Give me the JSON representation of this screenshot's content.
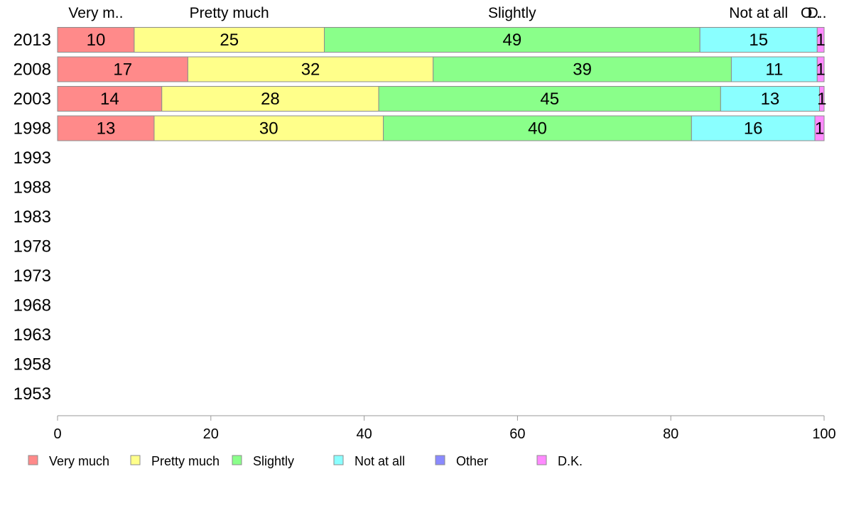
{
  "chart_data": {
    "type": "bar",
    "orientation": "horizontal",
    "stacked": true,
    "categories": [
      "2013",
      "2008",
      "2003",
      "1998",
      "1993",
      "1988",
      "1983",
      "1978",
      "1973",
      "1968",
      "1963",
      "1958",
      "1953"
    ],
    "series": [
      {
        "name": "Very much",
        "color": "#FF8A8A",
        "values": [
          10,
          17,
          13.6,
          12.6,
          null,
          null,
          null,
          null,
          null,
          null,
          null,
          null,
          null
        ],
        "labels": [
          "10",
          "17",
          "14",
          "13",
          "",
          "",
          "",
          "",
          "",
          "",
          "",
          "",
          ""
        ]
      },
      {
        "name": "Pretty much",
        "color": "#FFFF8A",
        "values": [
          24.8,
          32,
          28.3,
          29.9,
          null,
          null,
          null,
          null,
          null,
          null,
          null,
          null,
          null
        ],
        "labels": [
          "25",
          "32",
          "28",
          "30",
          "",
          "",
          "",
          "",
          "",
          "",
          "",
          "",
          ""
        ]
      },
      {
        "name": "Slightly",
        "color": "#8AFF8A",
        "values": [
          49,
          38.9,
          44.6,
          40.2,
          null,
          null,
          null,
          null,
          null,
          null,
          null,
          null,
          null
        ],
        "labels": [
          "49",
          "39",
          "45",
          "40",
          "",
          "",
          "",
          "",
          "",
          "",
          "",
          "",
          ""
        ]
      },
      {
        "name": "Not at all",
        "color": "#8AFFFF",
        "values": [
          15.3,
          11.2,
          12.9,
          16.1,
          null,
          null,
          null,
          null,
          null,
          null,
          null,
          null,
          null
        ],
        "labels": [
          "15",
          "11",
          "13",
          "16",
          "",
          "",
          "",
          "",
          "",
          "",
          "",
          "",
          ""
        ]
      },
      {
        "name": "Other",
        "color": "#8A8AFF",
        "values": [
          0,
          0,
          0,
          0,
          null,
          null,
          null,
          null,
          null,
          null,
          null,
          null,
          null
        ],
        "labels": [
          "",
          "",
          "",
          "",
          "",
          "",
          "",
          "",
          "",
          "",
          "",
          "",
          ""
        ]
      },
      {
        "name": "D.K.",
        "color": "#FF8AFF",
        "values": [
          0.9,
          0.9,
          0.6,
          1.2,
          null,
          null,
          null,
          null,
          null,
          null,
          null,
          null,
          null
        ],
        "labels": [
          "1",
          "1",
          "1",
          "1",
          "",
          "",
          "",
          "",
          "",
          "",
          "",
          "",
          ""
        ]
      }
    ],
    "top_labels": [
      "Very m..",
      "Pretty much",
      "Slightly",
      "Not at all",
      "O..",
      "D.."
    ],
    "xlim": [
      0,
      100
    ],
    "xticks": [
      0,
      20,
      40,
      60,
      80,
      100
    ],
    "grid": false,
    "legend_position": "bottom",
    "title": "",
    "xlabel": "",
    "ylabel": ""
  }
}
